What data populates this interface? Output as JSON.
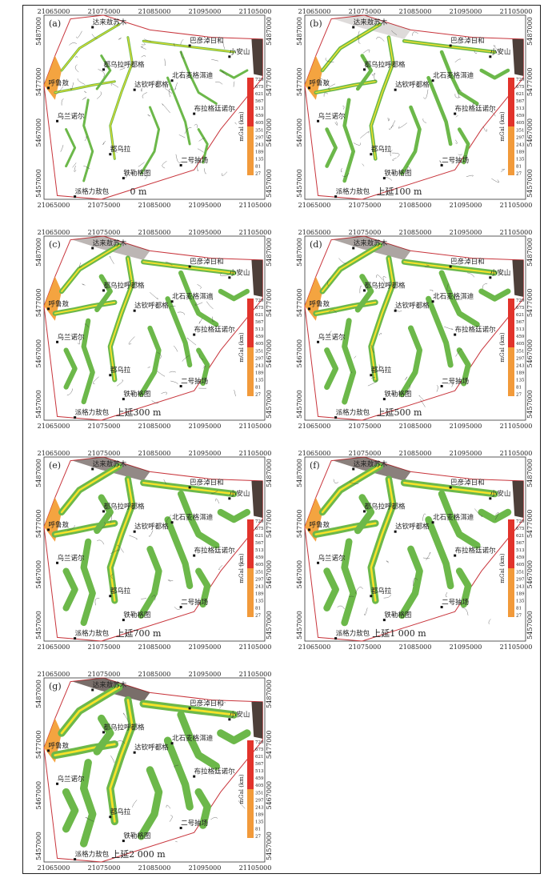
{
  "colors": {
    "polygon": "#c8353c",
    "green": "#6cb84a",
    "yellow": "#f7e22a",
    "orange": "#f39a2b",
    "red": "#d9462a",
    "dark": "#3a2a24",
    "scale_top": "#e2332b",
    "scale_bottom": "#f29a3a"
  },
  "axis": {
    "x_ticks": [
      "21065000",
      "21075000",
      "21085000",
      "21095000",
      "21105000"
    ],
    "y_ticks": [
      "5487000",
      "5477000",
      "5467000",
      "5457000"
    ]
  },
  "colorbar": {
    "unit": "mGal (km)",
    "values": [
      "729",
      "675",
      "621",
      "567",
      "513",
      "459",
      "405",
      "351",
      "297",
      "243",
      "189",
      "135",
      "81",
      "27"
    ]
  },
  "places": [
    "达来敖苏木",
    "巴彦淖日和",
    "小安山",
    "都乌拉呼都格",
    "北石麦格洱迪",
    "达钦呼都格",
    "布拉格廷诺尔",
    "呼鲁敖",
    "乌兰诺尔",
    "都乌拉",
    "二号抽场",
    "铁勒格图",
    "派格力敖包"
  ],
  "panels": [
    {
      "letter": "(a)",
      "caption": "0 m",
      "density": 1.0
    },
    {
      "letter": "(b)",
      "caption": "上延100 m",
      "density": 0.8
    },
    {
      "letter": "(c)",
      "caption": "上延300 m",
      "density": 0.6
    },
    {
      "letter": "(d)",
      "caption": "上延500 m",
      "density": 0.5
    },
    {
      "letter": "(e)",
      "caption": "上延700 m",
      "density": 0.35
    },
    {
      "letter": "(f)",
      "caption": "上延1 000 m",
      "density": 0.3
    },
    {
      "letter": "(g)",
      "caption": "上延2 000 m",
      "density": 0.2
    }
  ]
}
